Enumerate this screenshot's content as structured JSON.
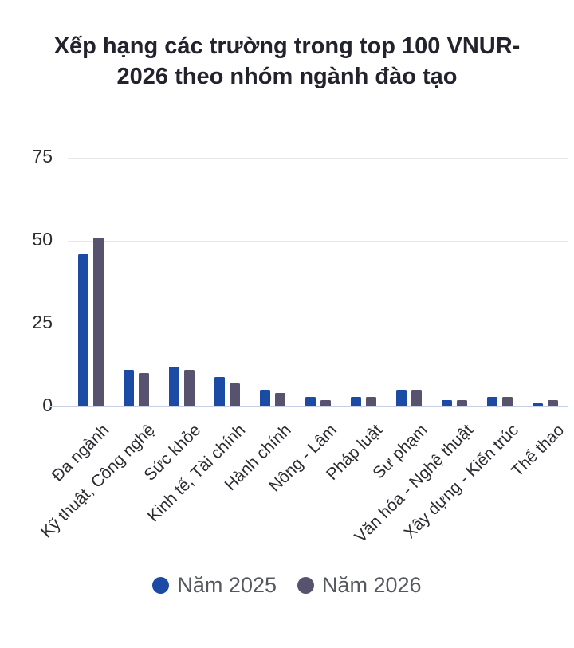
{
  "chart_data": {
    "type": "bar",
    "title": "Xếp hạng các trường trong top 100 VNUR-2026 theo nhóm ngành đào tạo",
    "title_lines": [
      "Xếp hạng các trường trong top 100 VNUR-",
      "2026 theo nhóm ngành đào tạo"
    ],
    "categories": [
      "Đa ngành",
      "Kỹ thuật, Công nghệ",
      "Sức khỏe",
      "Kinh tế, Tài chính",
      "Hành chính",
      "Nông - Lâm",
      "Pháp luật",
      "Sư phạm",
      "Văn hóa - Nghệ thuật",
      "Xây dựng - Kiến trúc",
      "Thể thao"
    ],
    "series": [
      {
        "name": "Năm 2025",
        "color": "#1b4ba5",
        "values": [
          46,
          11,
          12,
          9,
          5,
          3,
          3,
          5,
          2,
          3,
          1
        ]
      },
      {
        "name": "Năm 2026",
        "color": "#57536e",
        "values": [
          51,
          10,
          11,
          7,
          4,
          2,
          3,
          5,
          2,
          3,
          2
        ]
      }
    ],
    "y_ticks": [
      0,
      25,
      50,
      75
    ],
    "ylim": [
      0,
      75
    ],
    "xlabel": "",
    "ylabel": "",
    "grid": "horizontal",
    "legend_position": "bottom"
  },
  "colors": {
    "title_text": "#23232e",
    "axis_text": "#2b2b31",
    "gridline": "#e8e8e8",
    "baseline": "#c7cfe5",
    "legend_text": "#56585f",
    "background": "#ffffff",
    "series_2025": "#1b4ba5",
    "series_2026": "#57536e"
  }
}
